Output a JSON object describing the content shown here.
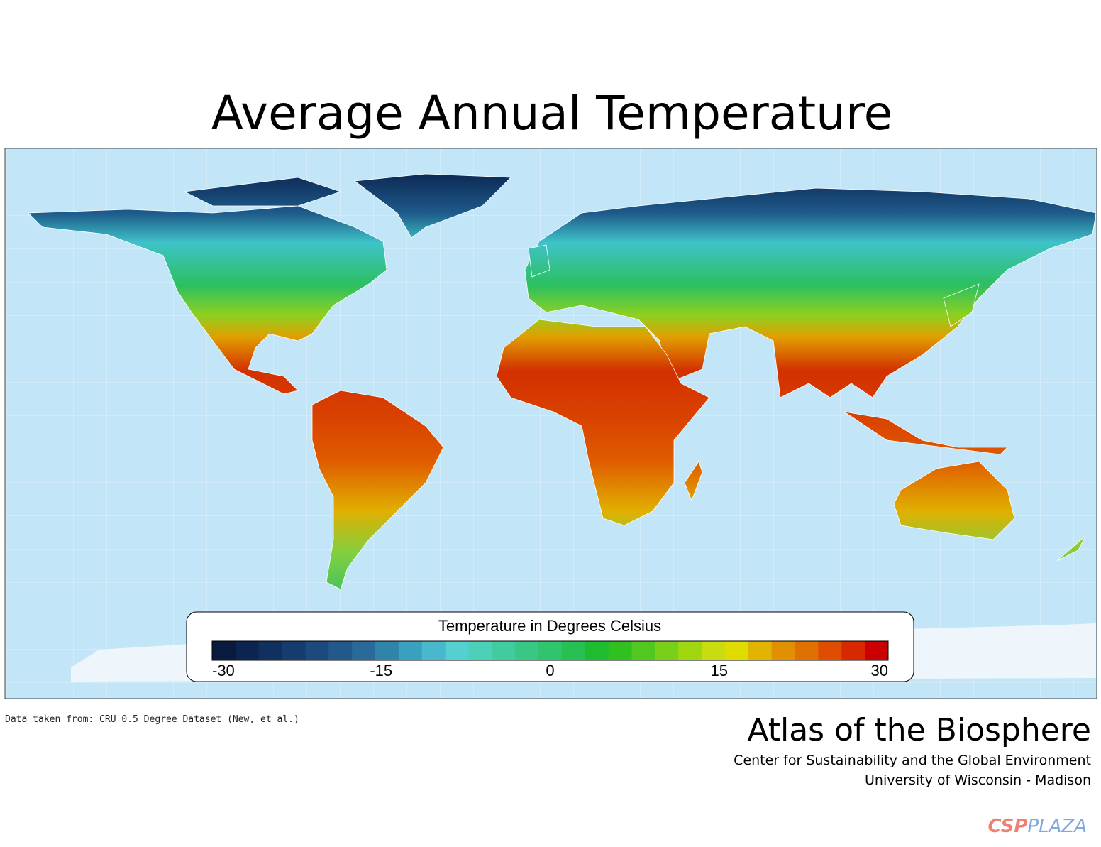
{
  "title": "Average Annual Temperature",
  "map": {
    "legend": {
      "title": "Temperature in Degrees Celsius",
      "lim": [
        -30,
        30
      ],
      "ticks": [
        -30,
        -15,
        0,
        15,
        30
      ],
      "colors": [
        "#0a1a3c",
        "#0c2550",
        "#103060",
        "#163c6e",
        "#1c4a7e",
        "#22588c",
        "#2a6a9a",
        "#3084aa",
        "#3aa0c0",
        "#4ab8cc",
        "#55d0d0",
        "#4cd0b8",
        "#40cca0",
        "#38c884",
        "#30c46c",
        "#28c050",
        "#20bc30",
        "#30c020",
        "#50c820",
        "#78d018",
        "#a0d810",
        "#c8dc10",
        "#e0dc00",
        "#e0b400",
        "#e09000",
        "#e07000",
        "#e04c00",
        "#d82800",
        "#cc0000"
      ]
    }
  },
  "source": "Data taken from: CRU 0.5 Degree Dataset (New, et al.)",
  "footer": {
    "title": "Atlas of the Biosphere",
    "lines": [
      "Center for Sustainability and the Global Environment",
      "University of Wisconsin - Madison"
    ]
  },
  "watermark": {
    "part1": "CSP",
    "part2": "PLAZA"
  }
}
